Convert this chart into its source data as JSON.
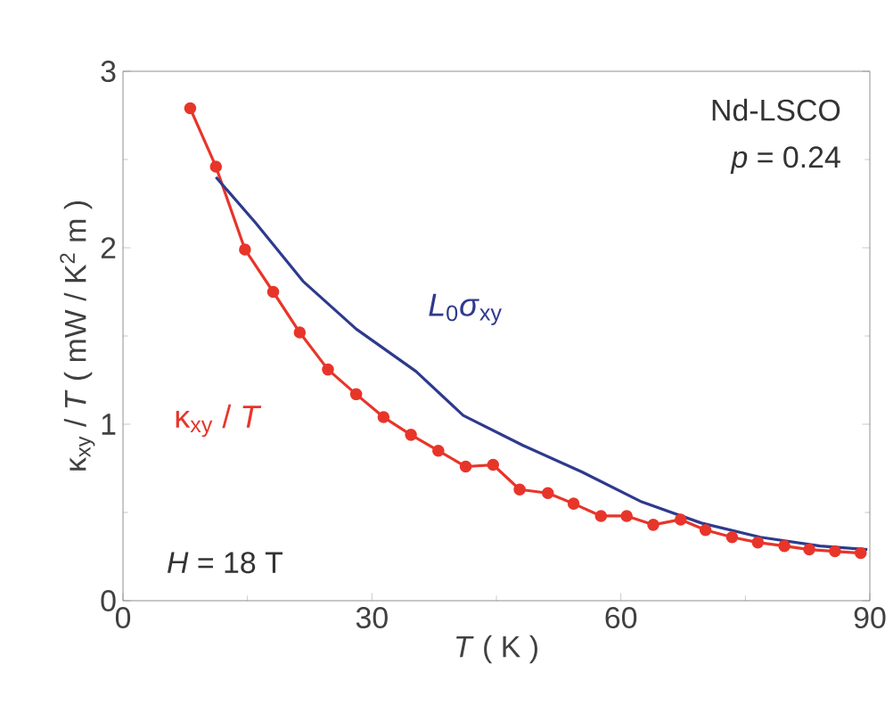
{
  "chart_data": {
    "type": "line",
    "xlabel": "*T* ( K )",
    "ylabel": "κ$_{xy}$ / *T* ( mW / K$^{2}$ m )",
    "xlim": [
      0,
      90
    ],
    "ylim": [
      0,
      3
    ],
    "xticks": [
      0,
      30,
      60,
      90
    ],
    "yticks": [
      0,
      1,
      2,
      3
    ],
    "legend": false,
    "annotations": [
      "Nd-LSCO",
      "*p* = 0.24",
      "*H* = 18 T"
    ],
    "series": [
      {
        "name": "κ$_{xy}$ / *T*",
        "color": "#e8352a",
        "marker": "circle",
        "line_style": "solid",
        "x": [
          8.1,
          11.2,
          14.7,
          18.1,
          21.3,
          24.7,
          28.1,
          31.4,
          34.7,
          38.0,
          41.3,
          44.6,
          47.8,
          51.2,
          54.3,
          57.6,
          60.7,
          63.9,
          67.2,
          70.2,
          73.4,
          76.5,
          79.7,
          82.7,
          85.8,
          88.9
        ],
        "values": [
          2.79,
          2.46,
          1.99,
          1.75,
          1.52,
          1.31,
          1.17,
          1.04,
          0.94,
          0.85,
          0.76,
          0.77,
          0.63,
          0.61,
          0.55,
          0.48,
          0.48,
          0.43,
          0.46,
          0.4,
          0.36,
          0.33,
          0.31,
          0.29,
          0.28,
          0.27
        ]
      },
      {
        "name": "*L*$_{0}$*σ*$_{xy}$",
        "color": "#2e3a8c",
        "marker": "none",
        "line_style": "solid",
        "x": [
          11.2,
          16.0,
          21.7,
          28.1,
          35.3,
          41.0,
          48.2,
          55.3,
          62.5,
          69.7,
          76.8,
          84.0,
          89.7
        ],
        "values": [
          2.4,
          2.14,
          1.81,
          1.54,
          1.3,
          1.05,
          0.88,
          0.73,
          0.56,
          0.44,
          0.36,
          0.31,
          0.29
        ]
      }
    ]
  }
}
